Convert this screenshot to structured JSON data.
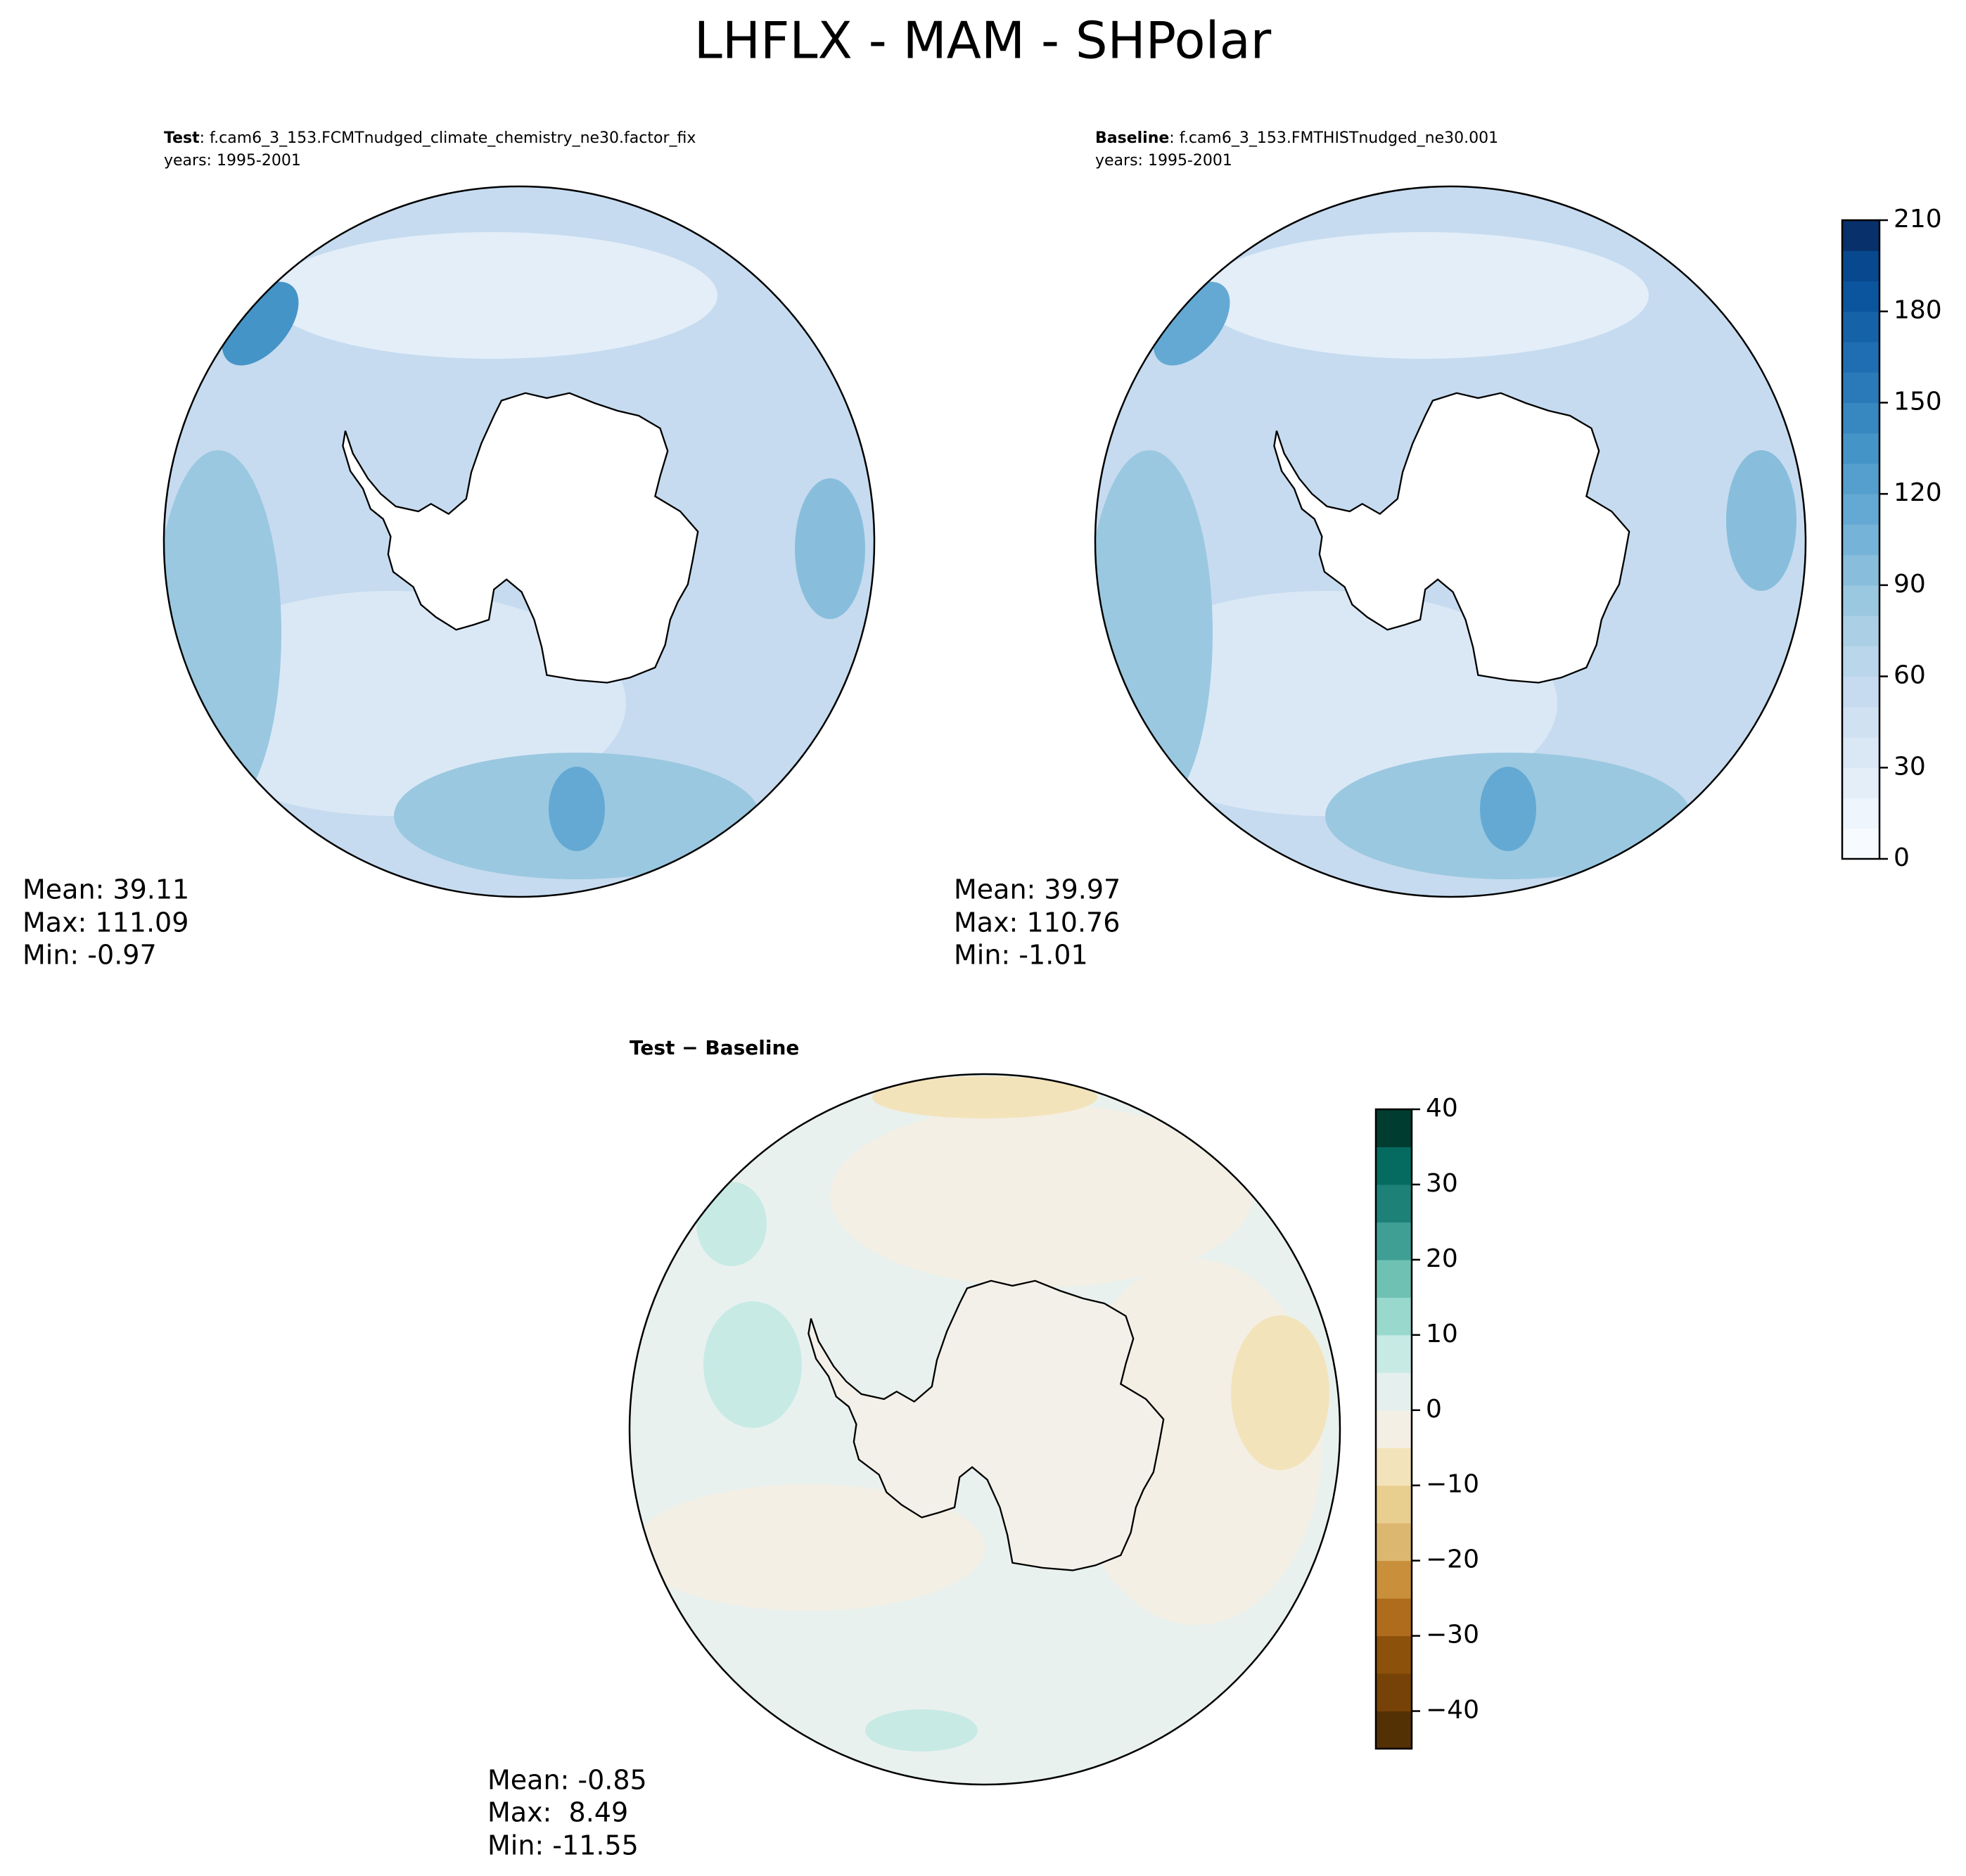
{
  "title": "LHFLX - MAM - SHPolar",
  "panels": [
    {
      "label": "Test",
      "case": ": f.cam6_3_153.FCMTnudged_climate_chemistry_ne30.factor_fix",
      "years": "years: 1995-2001",
      "stats": [
        "Mean: 39.11",
        "Max: 111.09",
        "Min: -0.97"
      ]
    },
    {
      "label": "Baseline",
      "case": ": f.cam6_3_153.FMTHISTnudged_ne30.001",
      "years": "years: 1995-2001",
      "stats": [
        "Mean: 39.97",
        "Max: 110.76",
        "Min: -1.01"
      ]
    },
    {
      "label": "Test − Baseline",
      "stats": [
        "Mean: -0.85",
        "Max:  8.49",
        "Min: -11.55"
      ]
    }
  ],
  "colorbars": [
    {
      "lim": [
        0,
        210
      ],
      "ticks": [
        0,
        30,
        60,
        90,
        120,
        150,
        180,
        210
      ],
      "colors": [
        "#f7fbff",
        "#eef5fc",
        "#e3eef9",
        "#dae8f6",
        "#d0e1f2",
        "#c6dbef",
        "#b9d6ea",
        "#abd0e6",
        "#9ac8e0",
        "#88bedc",
        "#75b4d8",
        "#64a9d3",
        "#549fcd",
        "#4594c7",
        "#3787c0",
        "#2a7ab9",
        "#1f6eb3",
        "#1562a9",
        "#0b559f",
        "#08488e",
        "#08306b"
      ]
    },
    {
      "lim": [
        -45,
        40
      ],
      "ticks": [
        {
          "value": -40,
          "label": "−40"
        },
        {
          "value": -30,
          "label": "−30"
        },
        {
          "value": -20,
          "label": "−20"
        },
        {
          "value": -10,
          "label": "−10"
        },
        0,
        10,
        20,
        30,
        40
      ],
      "colors": [
        "#543005",
        "#764208",
        "#8c510a",
        "#b06c1d",
        "#c98f3a",
        "#dcb770",
        "#e8cf8f",
        "#f3e3ba",
        "#f4efe4",
        "#e5f0ee",
        "#c7eae5",
        "#99d8cc",
        "#6fc1b3",
        "#3f9f95",
        "#1d8178",
        "#056b61",
        "#003c30"
      ]
    }
  ]
}
